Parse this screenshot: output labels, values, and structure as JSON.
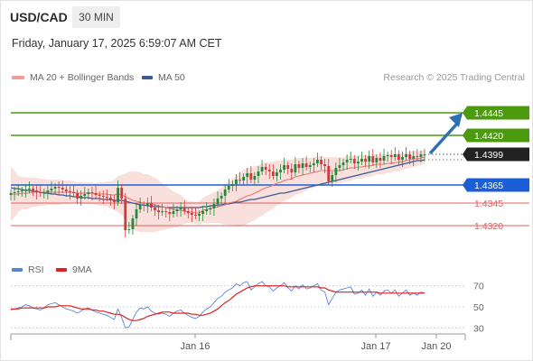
{
  "header": {
    "pair": "USD/CAD",
    "timeframe": "30 MIN",
    "datetime": "Friday, January 17, 2025 6:59:07 AM CET"
  },
  "legend": {
    "ma20_label": "MA 20 + Bollinger Bands",
    "ma50_label": "MA 50",
    "credit": "Research © 2025 Trading Central"
  },
  "rsi_legend": {
    "rsi_label": "RSI",
    "ma_label": "9MA"
  },
  "colors": {
    "up": "#1f8a3a",
    "down": "#d23a3a",
    "resistance": "#4c9a0e",
    "support_blue": "#1b5fd6",
    "support_red": "#e06060",
    "ma20": "#e57373",
    "bands": "#f6c7c1",
    "ma50": "#3a5a96",
    "arrow": "#2f6fb5",
    "rsi": "#5b84d9",
    "rsi_ma": "#e02020",
    "current": "#222222"
  },
  "chart_data": [
    {
      "type": "candlestick",
      "title": "USD/CAD",
      "ylim": [
        1.4296,
        1.4474
      ],
      "x_ticks": [
        "Jan 16",
        "Jan 17",
        "Jan 20"
      ],
      "levels": [
        {
          "value": 1.4445,
          "label": "1.4445",
          "kind": "resistance"
        },
        {
          "value": 1.442,
          "label": "1.4420",
          "kind": "resistance"
        },
        {
          "value": 1.4399,
          "label": "1.4399",
          "kind": "current"
        },
        {
          "value": 1.4365,
          "label": "1.4365",
          "kind": "support"
        },
        {
          "value": 1.4345,
          "label": "1.4345",
          "kind": "support2"
        },
        {
          "value": 1.432,
          "label": "1.4320",
          "kind": "support2"
        }
      ],
      "closes": [
        1.4356,
        1.4357,
        1.4358,
        1.4359,
        1.436,
        1.4361,
        1.4359,
        1.4357,
        1.4356,
        1.4357,
        1.4359,
        1.4361,
        1.4363,
        1.4362,
        1.436,
        1.4358,
        1.4357,
        1.4356,
        1.435,
        1.4353,
        1.4355,
        1.4357,
        1.4356,
        1.4354,
        1.4353,
        1.4352,
        1.4351,
        1.4348,
        1.4346,
        1.4362,
        1.435,
        1.4315,
        1.4316,
        1.4328,
        1.4338,
        1.4343,
        1.4342,
        1.4345,
        1.434,
        1.4337,
        1.4335,
        1.4336,
        1.4335,
        1.4333,
        1.4336,
        1.4338,
        1.434,
        1.4336,
        1.4334,
        1.4332,
        1.4331,
        1.4333,
        1.4336,
        1.4338,
        1.4339,
        1.4344,
        1.435,
        1.4353,
        1.436,
        1.4364,
        1.4366,
        1.4371,
        1.437,
        1.4374,
        1.4378,
        1.4371,
        1.4375,
        1.438,
        1.4385,
        1.4382,
        1.438,
        1.4375,
        1.4379,
        1.4382,
        1.4387,
        1.4383,
        1.4379,
        1.4388,
        1.4384,
        1.4389,
        1.4385,
        1.4387,
        1.4389,
        1.4393,
        1.4388,
        1.4386,
        1.4369,
        1.4376,
        1.4384,
        1.4387,
        1.439,
        1.4393,
        1.4394,
        1.4389,
        1.4391,
        1.4394,
        1.4391,
        1.4397,
        1.439,
        1.4395,
        1.4392,
        1.4397,
        1.4398,
        1.4396,
        1.4399,
        1.4393,
        1.4396,
        1.4399,
        1.4394,
        1.4397,
        1.4396,
        1.4399,
        1.4399
      ],
      "ma20": [
        1.4355,
        1.4355,
        1.4355,
        1.4356,
        1.4356,
        1.4356,
        1.4357,
        1.4357,
        1.4357,
        1.4357,
        1.4357,
        1.4357,
        1.4357,
        1.4357,
        1.4357,
        1.4357,
        1.4357,
        1.4357,
        1.4356,
        1.4356,
        1.4356,
        1.4356,
        1.4356,
        1.4355,
        1.4355,
        1.4355,
        1.4355,
        1.4354,
        1.4354,
        1.4355,
        1.4354,
        1.4352,
        1.435,
        1.4348,
        1.4347,
        1.4346,
        1.4345,
        1.4345,
        1.4344,
        1.4343,
        1.4342,
        1.4341,
        1.434,
        1.4339,
        1.4338,
        1.4337,
        1.4337,
        1.4336,
        1.4335,
        1.4335,
        1.4334,
        1.4334,
        1.4337,
        1.4338,
        1.4339,
        1.434,
        1.4341,
        1.4342,
        1.4343,
        1.4345,
        1.4346,
        1.4347,
        1.4349,
        1.4351,
        1.4353,
        1.4354,
        1.4356,
        1.4358,
        1.436,
        1.4362,
        1.4363,
        1.4365,
        1.4367,
        1.4368,
        1.437,
        1.4371,
        1.4372,
        1.4374,
        1.4375,
        1.4376,
        1.4377,
        1.4378,
        1.4379,
        1.438,
        1.4381,
        1.4381,
        1.4381,
        1.4381,
        1.4381,
        1.4381,
        1.4382,
        1.4383,
        1.4384,
        1.4384,
        1.4385,
        1.4385,
        1.4386,
        1.4386,
        1.4387,
        1.4388,
        1.4388,
        1.4388,
        1.4389,
        1.4389,
        1.439,
        1.439,
        1.4391,
        1.4392,
        1.4393,
        1.4394,
        1.4394,
        1.4395,
        1.4396
      ],
      "band_width": [
        0.003,
        0.0026,
        0.002,
        0.0018,
        0.0018,
        0.0017,
        0.0016,
        0.0016,
        0.0015,
        0.0015,
        0.0014,
        0.0014,
        0.0014,
        0.0014,
        0.0013,
        0.0013,
        0.0013,
        0.0012,
        0.0012,
        0.0012,
        0.0012,
        0.0012,
        0.0012,
        0.0012,
        0.0013,
        0.0013,
        0.0014,
        0.0015,
        0.0017,
        0.002,
        0.0022,
        0.0026,
        0.003,
        0.0032,
        0.0033,
        0.0033,
        0.0032,
        0.0032,
        0.0031,
        0.003,
        0.0028,
        0.0026,
        0.0024,
        0.0022,
        0.002,
        0.0019,
        0.0017,
        0.0014,
        0.0012,
        0.0012,
        0.0012,
        0.0013,
        0.0014,
        0.0015,
        0.0016,
        0.0017,
        0.0018,
        0.002,
        0.0022,
        0.0024,
        0.0026,
        0.0028,
        0.003,
        0.0031,
        0.0031,
        0.003,
        0.003,
        0.0029,
        0.0029,
        0.0028,
        0.0027,
        0.0026,
        0.0025,
        0.0024,
        0.0023,
        0.0022,
        0.0021,
        0.002,
        0.002,
        0.0019,
        0.0018,
        0.0017,
        0.0017,
        0.0016,
        0.0016,
        0.0015,
        0.0015,
        0.0015,
        0.0015,
        0.0014,
        0.0014,
        0.0014,
        0.0014,
        0.0013,
        0.0013,
        0.0013,
        0.0012,
        0.0012,
        0.0012,
        0.0011,
        0.0011,
        0.0011,
        0.001,
        0.001,
        0.001,
        0.001,
        0.0009,
        0.0009,
        0.0009,
        0.0009,
        0.0008,
        0.0008,
        0.0008
      ],
      "ma50": [
        1.4362,
        1.4361,
        1.4361,
        1.436,
        1.4359,
        1.4359,
        1.4358,
        1.4358,
        1.4357,
        1.4356,
        1.4356,
        1.4355,
        1.4355,
        1.4354,
        1.4354,
        1.4353,
        1.4353,
        1.4352,
        1.4352,
        1.4351,
        1.4351,
        1.4351,
        1.435,
        1.435,
        1.435,
        1.4349,
        1.4349,
        1.4349,
        1.4348,
        1.4348,
        1.4348,
        1.4347,
        1.4346,
        1.4345,
        1.4344,
        1.4343,
        1.4343,
        1.4342,
        1.4342,
        1.4341,
        1.4341,
        1.4341,
        1.434,
        1.434,
        1.434,
        1.434,
        1.434,
        1.434,
        1.434,
        1.434,
        1.434,
        1.434,
        1.4341,
        1.4341,
        1.4342,
        1.4342,
        1.4343,
        1.4343,
        1.4344,
        1.4344,
        1.4345,
        1.4346,
        1.4346,
        1.4347,
        1.4348,
        1.4349,
        1.4349,
        1.435,
        1.4351,
        1.4352,
        1.4353,
        1.4354,
        1.4355,
        1.4356,
        1.4356,
        1.4357,
        1.4358,
        1.4359,
        1.436,
        1.4361,
        1.4362,
        1.4363,
        1.4364,
        1.4365,
        1.4366,
        1.4367,
        1.4368,
        1.4369,
        1.437,
        1.4371,
        1.4372,
        1.4373,
        1.4374,
        1.4375,
        1.4376,
        1.4377,
        1.4378,
        1.4379,
        1.438,
        1.4381,
        1.4382,
        1.4383,
        1.4384,
        1.4385,
        1.4386,
        1.4387,
        1.4388,
        1.4389,
        1.439,
        1.4391,
        1.4392,
        1.4392,
        1.4393
      ],
      "projection": {
        "from": 1.4399,
        "to": 1.4445
      }
    },
    {
      "type": "line",
      "title": "RSI",
      "ylim": [
        20,
        80
      ],
      "y_ticks": [
        70,
        50,
        30
      ],
      "series": [
        {
          "name": "RSI",
          "values": [
            47,
            48,
            49,
            50,
            52,
            51,
            49,
            48,
            47,
            49,
            52,
            53,
            54,
            52,
            50,
            48,
            47,
            46,
            44,
            46,
            48,
            49,
            47,
            45,
            44,
            43,
            42,
            40,
            38,
            48,
            40,
            30,
            31,
            38,
            45,
            49,
            48,
            50,
            46,
            44,
            43,
            44,
            43,
            41,
            44,
            46,
            47,
            44,
            42,
            40,
            39,
            41,
            45,
            48,
            50,
            54,
            58,
            60,
            64,
            66,
            68,
            72,
            70,
            73,
            74,
            66,
            69,
            72,
            74,
            70,
            69,
            65,
            68,
            70,
            73,
            68,
            65,
            70,
            67,
            71,
            67,
            68,
            70,
            72,
            66,
            64,
            52,
            58,
            64,
            66,
            67,
            68,
            69,
            62,
            63,
            66,
            61,
            67,
            60,
            64,
            61,
            65,
            66,
            63,
            66,
            60,
            63,
            66,
            61,
            63,
            61,
            64,
            63
          ]
        },
        {
          "name": "9MA",
          "values": [
            48,
            48,
            48,
            49,
            49,
            49,
            49,
            49,
            49,
            49,
            50,
            50,
            50,
            51,
            51,
            51,
            51,
            50,
            49,
            48,
            48,
            48,
            47,
            47,
            46,
            46,
            45,
            44,
            43,
            43,
            42,
            40,
            38,
            37,
            37,
            38,
            39,
            41,
            42,
            43,
            44,
            45,
            45,
            45,
            44,
            44,
            44,
            44,
            44,
            43,
            43,
            42,
            42,
            43,
            44,
            46,
            48,
            51,
            54,
            56,
            59,
            62,
            64,
            66,
            68,
            69,
            70,
            70,
            70,
            70,
            70,
            70,
            70,
            70,
            70,
            69,
            69,
            69,
            69,
            69,
            69,
            69,
            69,
            69,
            68,
            68,
            66,
            65,
            64,
            64,
            64,
            64,
            64,
            64,
            64,
            64,
            64,
            64,
            64,
            64,
            63,
            63,
            63,
            63,
            63,
            63,
            63,
            63,
            63,
            63,
            63,
            63,
            63
          ]
        }
      ]
    }
  ]
}
